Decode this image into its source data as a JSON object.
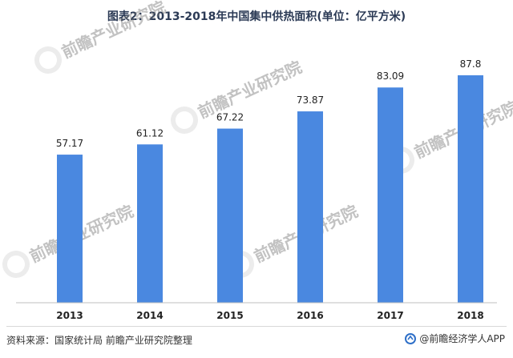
{
  "title": "图表2：2013-2018年中国集中供热面积(单位：亿平方米)",
  "chart_data": {
    "type": "bar",
    "title": "图表2：2013-2018年中国集中供热面积(单位：亿平方米)",
    "categories": [
      "2013",
      "2014",
      "2015",
      "2016",
      "2017",
      "2018"
    ],
    "values": [
      57.17,
      61.12,
      67.22,
      73.87,
      83.09,
      87.8
    ],
    "value_labels": [
      "57.17",
      "61.12",
      "67.22",
      "73.87",
      "83.09",
      "87.8"
    ],
    "xlabel": "",
    "ylabel": "",
    "grid": false,
    "color": "#4a88e0"
  },
  "source": "资料来源：国家统计局 前瞻产业研究院整理",
  "brand": "@前瞻经济学人APP",
  "watermark": "前瞻产业研究院"
}
